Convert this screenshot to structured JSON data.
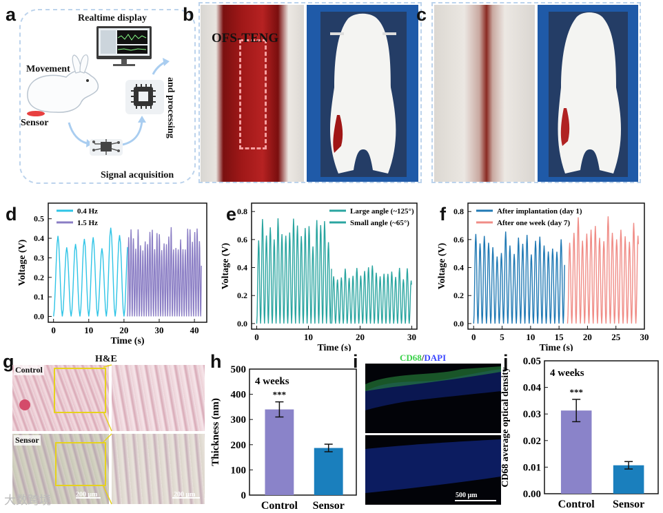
{
  "panels": {
    "a": "a",
    "b": "b",
    "c": "c",
    "d": "d",
    "e": "e",
    "f": "f",
    "g": "g",
    "h": "h",
    "i": "i",
    "j": "j"
  },
  "panel_a": {
    "realtime": "Realtime display",
    "movement": "Movement",
    "sensor": "Sensor",
    "signal": "Signal acquisition",
    "processing": "and processing"
  },
  "panel_b": {
    "device_label": "OFS-TENG"
  },
  "panel_g": {
    "title": "H&E",
    "row1": "Control",
    "row2": "Sensor",
    "scale1": "200 μm",
    "scale2": "200 μm"
  },
  "panel_i": {
    "cd68": "CD68",
    "slash": "/",
    "dapi": "DAPI",
    "scale": "500 μm"
  },
  "watermark": "大数跨境",
  "colors": {
    "cyan": "#2ec4e6",
    "purple": "#8a7dc4",
    "teal": "#2aa5a0",
    "blue": "#2079b4",
    "salmon": "#f08c86",
    "bar_control": "#8a83c9",
    "bar_sensor": "#1a7fbd",
    "dashed": "#bcd3ec"
  },
  "chart_data": [
    {
      "id": "d",
      "type": "line",
      "xlabel": "Time (s)",
      "ylabel": "Voltage (V)",
      "xlim": [
        -1.5,
        43.5
      ],
      "ylim": [
        -0.03,
        0.58
      ],
      "xticks": [
        0,
        10,
        20,
        30,
        40
      ],
      "yticks": [
        0.0,
        0.1,
        0.2,
        0.3,
        0.4,
        0.5
      ],
      "ytick_labels": [
        "0.0",
        "0.1",
        "0.2",
        "0.3",
        "0.4",
        "0.5"
      ],
      "series": [
        {
          "name": "0.4 Hz",
          "freq_hz": 0.4,
          "x_range": [
            0,
            21
          ],
          "min": 0.0,
          "max": 0.47
        },
        {
          "name": "1.5 Hz",
          "freq_hz": 1.5,
          "x_range": [
            21,
            42
          ],
          "min": 0.0,
          "max": 0.46
        }
      ]
    },
    {
      "id": "e",
      "type": "line",
      "xlabel": "Time (s)",
      "ylabel": "Voltage (V)",
      "xlim": [
        -1,
        31
      ],
      "ylim": [
        -0.04,
        0.86
      ],
      "xticks": [
        0,
        10,
        20,
        30
      ],
      "yticks": [
        0.0,
        0.2,
        0.4,
        0.6,
        0.8
      ],
      "ytick_labels": [
        "0.0",
        "0.2",
        "0.4",
        "0.6",
        "0.8"
      ],
      "series": [
        {
          "name": "Large angle (~125°)",
          "x_range": [
            0,
            14.5
          ],
          "min": 0.0,
          "max": 0.76
        },
        {
          "name": "Small angle (~65°)",
          "x_range": [
            14.5,
            30
          ],
          "min": 0.0,
          "max": 0.42
        }
      ]
    },
    {
      "id": "f",
      "type": "line",
      "xlabel": "Time (s)",
      "ylabel": "Voltage (V)",
      "xlim": [
        -1,
        30
      ],
      "ylim": [
        -0.04,
        0.86
      ],
      "xticks": [
        0,
        5,
        10,
        15,
        20,
        25,
        30
      ],
      "yticks": [
        0.0,
        0.2,
        0.4,
        0.6,
        0.8
      ],
      "ytick_labels": [
        "0.0",
        "0.2",
        "0.4",
        "0.6",
        "0.8"
      ],
      "series": [
        {
          "name": "After implantation (day 1)",
          "x_range": [
            0,
            16
          ],
          "min": 0.0,
          "max": 0.66
        },
        {
          "name": "After one week (day 7)",
          "x_range": [
            16.5,
            29
          ],
          "min": 0.0,
          "max": 0.78
        }
      ]
    },
    {
      "id": "h",
      "type": "bar",
      "annotation": "4 weeks",
      "categories": [
        "Control",
        "Sensor"
      ],
      "values": [
        340,
        187
      ],
      "errors": [
        30,
        15
      ],
      "significance": [
        "***",
        ""
      ],
      "ylabel": "Thickness (nm)",
      "ylim": [
        0,
        500
      ],
      "yticks": [
        0,
        100,
        200,
        300,
        400,
        500
      ]
    },
    {
      "id": "j",
      "type": "bar",
      "annotation": "4 weeks",
      "categories": [
        "Control",
        "Sensor"
      ],
      "values": [
        0.0313,
        0.0107
      ],
      "errors": [
        0.0042,
        0.0014
      ],
      "significance": [
        "***",
        ""
      ],
      "ylabel": "CD68 average optical density",
      "ylim": [
        0,
        0.05
      ],
      "yticks": [
        0.0,
        0.01,
        0.02,
        0.03,
        0.04,
        0.05
      ],
      "ytick_labels": [
        "0.00",
        "0.01",
        "0.02",
        "0.03",
        "0.04",
        "0.05"
      ]
    }
  ]
}
